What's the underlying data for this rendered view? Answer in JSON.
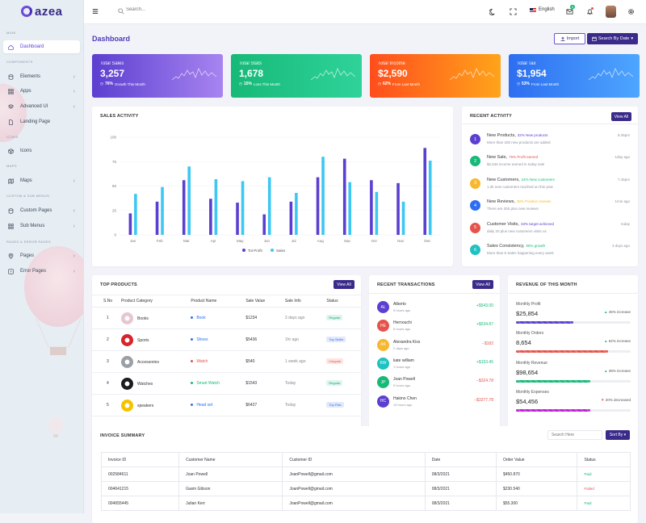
{
  "app": {
    "name": "azea"
  },
  "sidebar": {
    "sections": [
      {
        "label": "MAIN"
      },
      {
        "label": "COMPONENTS"
      },
      {
        "label": "ICONS"
      },
      {
        "label": "MAPS"
      },
      {
        "label": "CUSTOM & SUB MENUS"
      },
      {
        "label": "PAGES & ERROR PAGES"
      }
    ],
    "items": [
      {
        "label": "Dashboard",
        "icon": "home-icon"
      },
      {
        "label": "Elements",
        "icon": "database-icon"
      },
      {
        "label": "Apps",
        "icon": "grid-icon"
      },
      {
        "label": "Advanced UI",
        "icon": "layers-icon"
      },
      {
        "label": "Landing Page",
        "icon": "file-icon"
      },
      {
        "label": "Icons",
        "icon": "box-icon"
      },
      {
        "label": "Maps",
        "icon": "map-icon"
      },
      {
        "label": "Custom Pages",
        "icon": "database-icon"
      },
      {
        "label": "Sub Menus",
        "icon": "grid-icon"
      },
      {
        "label": "Pages",
        "icon": "map-pin-icon"
      },
      {
        "label": "Error Pages",
        "icon": "alert-icon"
      }
    ]
  },
  "topbar": {
    "search_placeholder": "Search...",
    "language": "English",
    "mail_count": "5"
  },
  "page": {
    "title": "Dashboard",
    "import_label": "Import",
    "date_label": "Search By Date"
  },
  "stats": [
    {
      "label": "Total Sales",
      "value": "3,257",
      "pct": "76%",
      "note": "Growth This Month",
      "color1": "#5b3fd0",
      "color2": "#a784f0"
    },
    {
      "label": "Total Stats",
      "value": "1,678",
      "pct": "15%",
      "note": "Loss This Month",
      "color1": "#17b978",
      "color2": "#2fd39a"
    },
    {
      "label": "Total Income",
      "value": "$2,590",
      "pct": "62%",
      "note": "From Last Month",
      "color1": "#ff4d1c",
      "color2": "#ffa41b"
    },
    {
      "label": "Total Tax",
      "value": "$1,954",
      "pct": "53%",
      "note": "From Last Month",
      "color1": "#2d6ef0",
      "color2": "#4ea6ff"
    }
  ],
  "sales_activity": {
    "title": "SALES ACTIVITY"
  },
  "chart_data": {
    "type": "bar",
    "title": "SALES ACTIVITY",
    "categories": [
      "Jan",
      "Feb",
      "Mar",
      "Apr",
      "May",
      "Jun",
      "Jul",
      "Aug",
      "Sep",
      "Oct",
      "Nov",
      "Dec"
    ],
    "series": [
      {
        "name": "Tot Profit",
        "color": "#5b3fd0",
        "values": [
          22,
          34,
          56,
          37,
          33,
          21,
          34,
          59,
          78,
          56,
          53,
          89
        ]
      },
      {
        "name": "Sales",
        "color": "#3cc8f3",
        "values": [
          42,
          49,
          70,
          57,
          55,
          59,
          43,
          80,
          54,
          44,
          34,
          76
        ]
      }
    ],
    "ylim": [
      0,
      100
    ],
    "yticks": [
      0,
      25,
      50,
      75,
      100
    ],
    "legend": "bottom"
  },
  "recent_activity": {
    "title": "RECENT ACTIVITY",
    "view_all": "View All",
    "items": [
      {
        "num": "1",
        "title": "New Products,",
        "tag": "32% New products",
        "tag_color": "#5b3fd0",
        "desc": "More than 200 new products are added",
        "time": "8.45pm",
        "color": "#5b3fd0"
      },
      {
        "num": "2",
        "title": "New Sale,",
        "tag": "76% Profit earned",
        "tag_color": "#e5534b",
        "desc": "$2,546 income earned in today sale",
        "time": "1day ago",
        "color": "#17b978"
      },
      {
        "num": "3",
        "title": "New Customers,",
        "tag": "24% New customers",
        "tag_color": "#17b978",
        "desc": "1.3k new customers reached on this year",
        "time": "7.45pm",
        "color": "#f7b731"
      },
      {
        "num": "4",
        "title": "New Reviews,",
        "tag": "38% Positive reviews",
        "tag_color": "#f7b731",
        "desc": "There are 300 plus new reviews",
        "time": "1min ago",
        "color": "#2d6ef0"
      },
      {
        "num": "5",
        "title": "Customer Visits,",
        "tag": "33% target achieved",
        "tag_color": "#5b3fd0",
        "desc": "daily 20 plus new customers visits us",
        "time": "today",
        "color": "#e5534b"
      },
      {
        "num": "6",
        "title": "Sales Consistency,",
        "tag": "90% growth",
        "tag_color": "#17b978",
        "desc": "More than 5 Sales happening every week",
        "time": "3 days ago",
        "color": "#1fc2c2"
      }
    ]
  },
  "top_products": {
    "title": "TOP PRODUCTS",
    "view_all": "View All",
    "headers": [
      "S.No",
      "Product Category",
      "Product Name",
      "Sale Value",
      "Sale Info",
      "Status"
    ],
    "rows": [
      {
        "sno": "1",
        "category": "Books",
        "name": "Book",
        "name_color": "#2d6ef0",
        "value": "$1234",
        "info": "3 days ago",
        "status": "Regular",
        "status_bg": "#dff5ee",
        "status_fg": "#17a86c",
        "img": "#e7c6d2"
      },
      {
        "sno": "2",
        "category": "Sports",
        "name": "Shoes",
        "name_color": "#2d6ef0",
        "value": "$5436",
        "info": "1hr ago",
        "status": "Top Seller",
        "status_bg": "#e3e8fb",
        "status_fg": "#2d6ef0",
        "img": "#d8232a"
      },
      {
        "sno": "3",
        "category": "Accessories",
        "name": "Watch",
        "name_color": "#e5534b",
        "value": "$540",
        "info": "1 week ago",
        "status": "Irregular",
        "status_bg": "#fde5e3",
        "status_fg": "#e5534b",
        "img": "#9aa0a6"
      },
      {
        "sno": "4",
        "category": "Watches",
        "name": "Smart Watch",
        "name_color": "#17b978",
        "value": "$1543",
        "info": "Today",
        "status": "Regular",
        "status_bg": "#dff5ee",
        "status_fg": "#17a86c",
        "img": "#1c1c1c"
      },
      {
        "sno": "5",
        "category": "speakers",
        "name": "Head set",
        "name_color": "#2d6ef0",
        "value": "$6427",
        "info": "Today",
        "status": "Top Pick",
        "status_bg": "#e3e8fb",
        "status_fg": "#2d6ef0",
        "img": "#f5c400"
      }
    ]
  },
  "transactions": {
    "title": "RECENT TRANSACTIONS",
    "view_all": "View All",
    "items": [
      {
        "initials": "AL",
        "name": "Alberto",
        "time": "5 hours ago",
        "amount": "+$543.00",
        "color": "#5b3fd0",
        "amt_color": "#17b978"
      },
      {
        "initials": "HE",
        "name": "Hernouchi",
        "time": "5 hours ago",
        "amount": "+$534.87",
        "color": "#e5534b",
        "amt_color": "#17b978"
      },
      {
        "initials": "AK",
        "name": "Alexandra Kiss",
        "time": "2 days ago",
        "amount": "−$182",
        "color": "#f7b731",
        "amt_color": "#e5534b"
      },
      {
        "initials": "KW",
        "name": "kate william",
        "time": "1 hours ago",
        "amount": "+$153.45",
        "color": "#1fc2c2",
        "amt_color": "#17b978"
      },
      {
        "initials": "JP",
        "name": "Joan Powell",
        "time": "5 hours ago",
        "amount": "−$324.78",
        "color": "#17b978",
        "amt_color": "#e5534b"
      },
      {
        "initials": "HC",
        "name": "Hakino Chen",
        "time": "15 hours ago",
        "amount": "−$3277.78",
        "color": "#5b3fd0",
        "amt_color": "#e5534b"
      }
    ]
  },
  "revenue": {
    "title": "REVENUE OF THIS MONTH",
    "items": [
      {
        "label": "Monthly Profit",
        "value": "$25,854",
        "pct": "45% increase",
        "dir": "up",
        "bar": 0.5,
        "color": "#5b3fd0"
      },
      {
        "label": "Monthly Orders",
        "value": "8,654",
        "pct": "62% increase",
        "dir": "up",
        "bar": 0.8,
        "color": "#e5534b"
      },
      {
        "label": "Monthly Revenue",
        "value": "$98,654",
        "pct": "38% increase",
        "dir": "up",
        "bar": 0.65,
        "color": "#17b978"
      },
      {
        "label": "Monthly Expenses",
        "value": "$54,456",
        "pct": "20% decreased",
        "dir": "down",
        "bar": 0.65,
        "color": "#c21dd8"
      }
    ]
  },
  "invoice": {
    "title": "INVOICE SUMMARY",
    "search_placeholder": "Search Here",
    "sort_label": "Sort By",
    "headers": [
      "Invoice ID",
      "Customer Name",
      "Customer ID",
      "Date",
      "Order Value",
      "Status"
    ],
    "rows": [
      {
        "id": "002584611",
        "name": "Joan Powell",
        "cid": "JoanPowell@gmail.com",
        "date": "08/3/2021",
        "value": "$450.870",
        "status": "Paid",
        "status_color": "#17b978"
      },
      {
        "id": "004641215",
        "name": "Gavin Gibson",
        "cid": "JoanPowell@gmail.com",
        "date": "08/3/2021",
        "value": "$230.540",
        "status": "Failed",
        "status_color": "#e5534b"
      },
      {
        "id": "004655445",
        "name": "Julian Kerr",
        "cid": "JoanPowell@gmail.com",
        "date": "08/3/2021",
        "value": "$55.300",
        "status": "Paid",
        "status_color": "#17b978"
      }
    ]
  }
}
